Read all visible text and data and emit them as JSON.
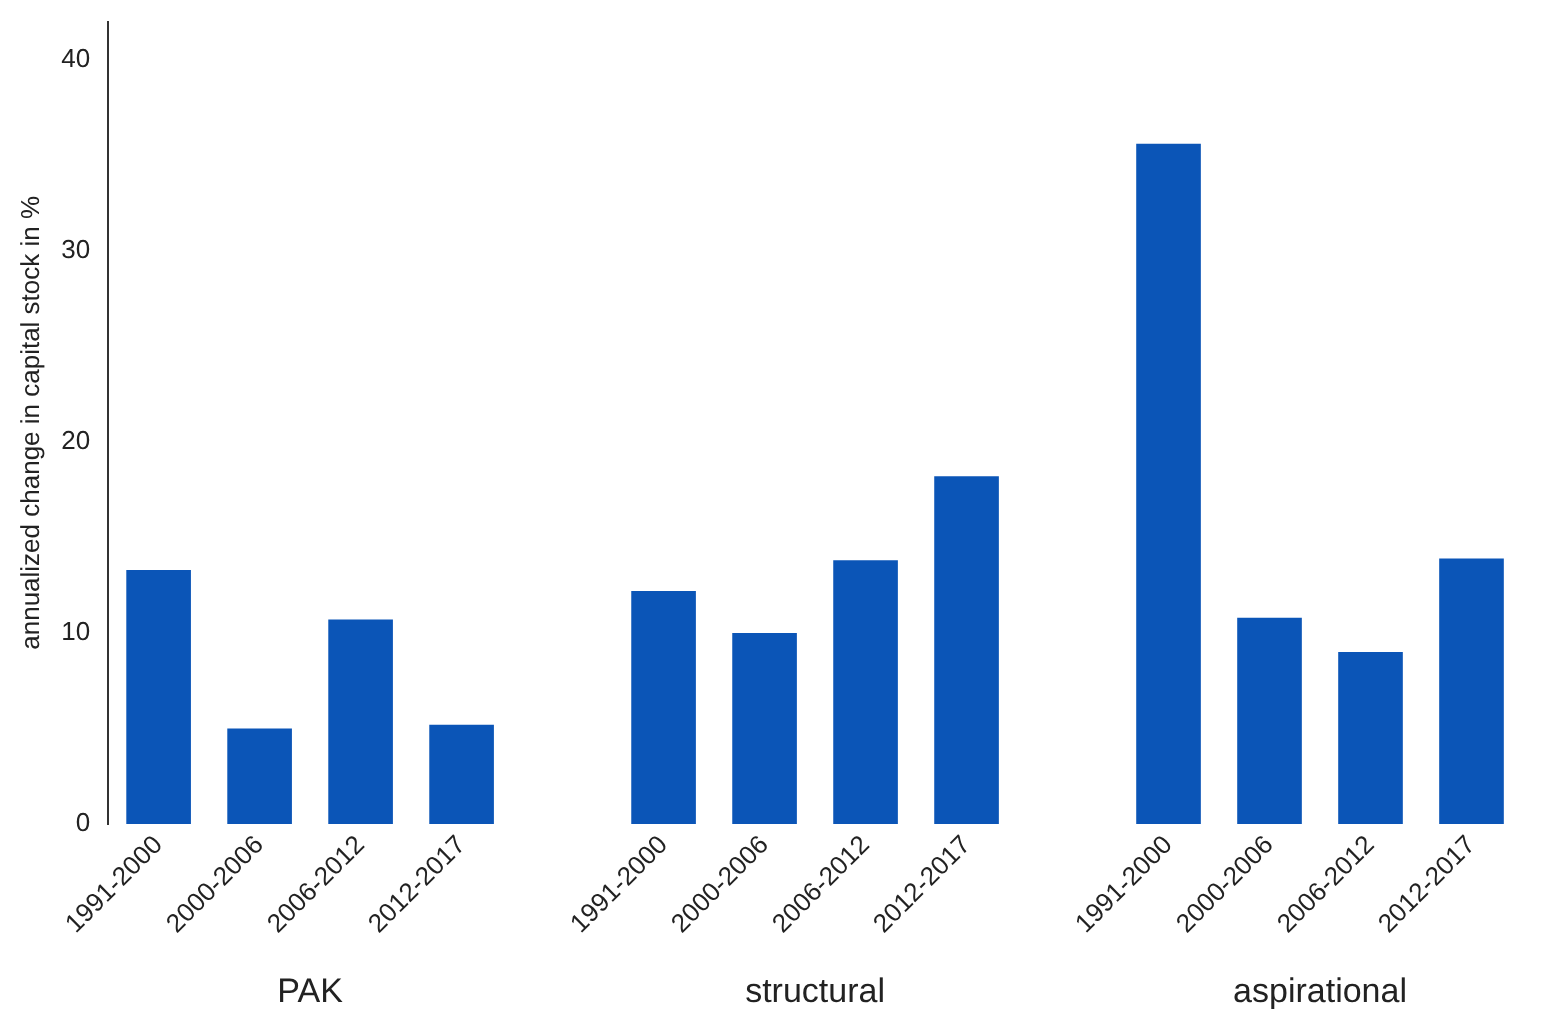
{
  "chart_data": {
    "type": "bar",
    "ylabel": "annualized change in capital stock in %",
    "categories": [
      "1991-2000",
      "2000-2006",
      "2006-2012",
      "2012-2017",
      null,
      "1991-2000",
      "2000-2006",
      "2006-2012",
      "2012-2017",
      null,
      "1991-2000",
      "2000-2006",
      "2006-2012",
      "2012-2017"
    ],
    "values": [
      13.3,
      5.0,
      10.7,
      5.2,
      null,
      12.2,
      10.0,
      13.8,
      18.2,
      null,
      35.6,
      10.8,
      9.0,
      13.9
    ],
    "color": "#0b55b7",
    "ylim": [
      0,
      42
    ],
    "yticks": [
      0,
      10,
      20,
      30,
      40
    ],
    "grid": false,
    "annotations": [
      "PAK",
      "structural",
      "aspirational"
    ]
  }
}
